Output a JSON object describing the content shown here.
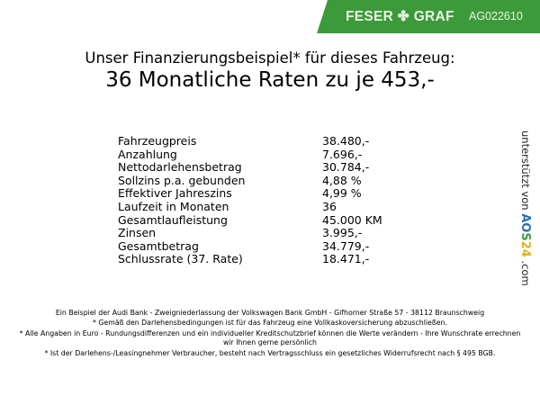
{
  "header": {
    "brand": "FESER",
    "brand2": "GRAF",
    "brand_icon": "clover-icon",
    "code": "AG022610",
    "color": "#3d9a3a"
  },
  "title": {
    "line1": "Unser Finanzierungsbeispiel* für dieses Fahrzeug:",
    "line2": "36 Monatliche Raten zu je 453,-"
  },
  "rows": [
    {
      "label": "Fahrzeugpreis",
      "value": "38.480,-"
    },
    {
      "label": "Anzahlung",
      "value": "7.696,-"
    },
    {
      "label": "Nettodarlehensbetrag",
      "value": "30.784,-"
    },
    {
      "label": "Sollzins p.a. gebunden",
      "value": "4,88 %"
    },
    {
      "label": "Effektiver Jahreszins",
      "value": "4,99 %"
    },
    {
      "label": "Laufzeit in Monaten",
      "value": "36"
    },
    {
      "label": "Gesamtlaufleistung",
      "value": "45.000 KM"
    },
    {
      "label": "Zinsen",
      "value": "3.995,-"
    },
    {
      "label": "Gesamtbetrag",
      "value": "34.779,-"
    },
    {
      "label": "Schlussrate (37. Rate)",
      "value": "18.471,-"
    }
  ],
  "side": {
    "text": "unterstützt von",
    "logo": "AOS24",
    ".com": ".com"
  },
  "footer": [
    "Ein Beispiel der Audi Bank - Zweigniederlassung der Volkswagen Bank GmbH - Gifhorner Straße 57 - 38112 Braunschweig",
    "* Gemäß den Darlehensbedingungen ist für das Fahrzeug eine Vollkaskoversicherung abzuschließen.",
    "* Alle Angaben in Euro - Rundungsdifferenzen und ein individueller Kreditschutzbrief können die Werte verändern - Ihre Wunschrate errechnen wir Ihnen gerne persönlich",
    "* Ist der Darlehens-/Leasingnehmer Verbraucher, besteht nach Vertragsschluss ein gesetzliches Widerrufsrecht nach § 495 BGB."
  ]
}
